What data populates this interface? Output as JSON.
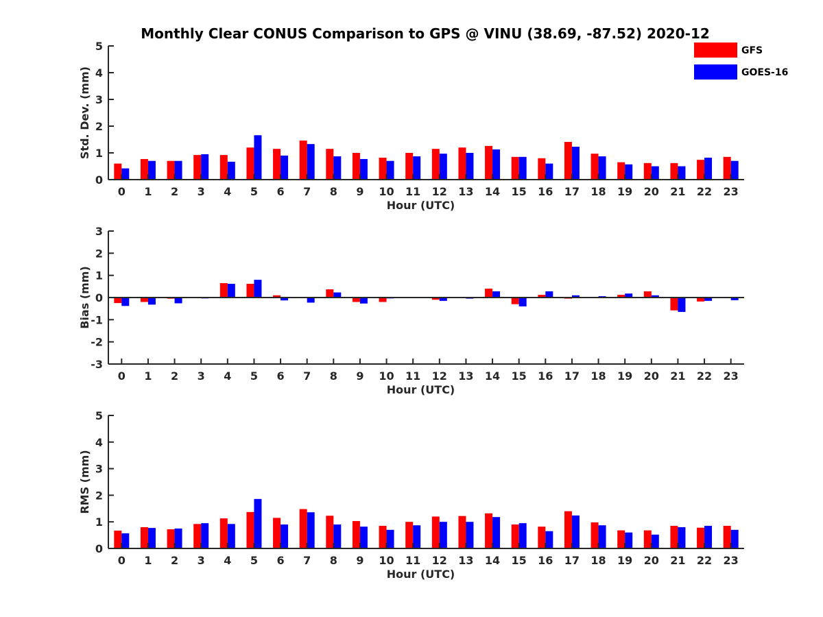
{
  "title": "Monthly Clear CONUS Comparison to GPS @ VINU (38.69, -87.52) 2020-12",
  "legend": {
    "placement": "top-right",
    "entries": [
      {
        "label": "GFS",
        "color": "#ff0000"
      },
      {
        "label": "GOES-16",
        "color": "#0000ff"
      }
    ]
  },
  "chart_data": [
    {
      "type": "bar",
      "xlabel": "Hour (UTC)",
      "ylabel": "Std. Dev. (mm)",
      "ylim": [
        0,
        5
      ],
      "yticks": [
        0,
        1,
        2,
        3,
        4,
        5
      ],
      "grid": false,
      "categories": [
        "0",
        "1",
        "2",
        "3",
        "4",
        "5",
        "6",
        "7",
        "8",
        "9",
        "10",
        "11",
        "12",
        "13",
        "14",
        "15",
        "16",
        "17",
        "18",
        "19",
        "20",
        "21",
        "22",
        "23"
      ],
      "series": [
        {
          "name": "GFS",
          "color": "#ff0000",
          "values": [
            0.6,
            0.77,
            0.7,
            0.92,
            0.92,
            1.2,
            1.15,
            1.46,
            1.15,
            1.0,
            0.82,
            1.0,
            1.15,
            1.2,
            1.26,
            0.85,
            0.8,
            1.41,
            0.97,
            0.65,
            0.62,
            0.62,
            0.74,
            0.85
          ]
        },
        {
          "name": "GOES-16",
          "color": "#0000ff",
          "values": [
            0.42,
            0.7,
            0.7,
            0.95,
            0.67,
            1.66,
            0.9,
            1.33,
            0.87,
            0.77,
            0.7,
            0.87,
            0.97,
            1.0,
            1.13,
            0.85,
            0.6,
            1.23,
            0.87,
            0.57,
            0.5,
            0.5,
            0.82,
            0.7
          ]
        }
      ]
    },
    {
      "type": "bar",
      "xlabel": "Hour (UTC)",
      "ylabel": "Bias (mm)",
      "ylim": [
        -3,
        3
      ],
      "yticks": [
        -3,
        -2,
        -1,
        0,
        1,
        2,
        3
      ],
      "grid": false,
      "categories": [
        "0",
        "1",
        "2",
        "3",
        "4",
        "5",
        "6",
        "7",
        "8",
        "9",
        "10",
        "11",
        "12",
        "13",
        "14",
        "15",
        "16",
        "17",
        "18",
        "19",
        "20",
        "21",
        "22",
        "23"
      ],
      "series": [
        {
          "name": "GFS",
          "color": "#ff0000",
          "values": [
            -0.25,
            -0.2,
            -0.05,
            0.0,
            0.65,
            0.62,
            0.1,
            0.03,
            0.37,
            -0.2,
            -0.2,
            0.0,
            -0.1,
            0.0,
            0.4,
            -0.3,
            0.12,
            -0.05,
            0.0,
            0.12,
            0.28,
            -0.58,
            -0.18,
            0.0
          ]
        },
        {
          "name": "GOES-16",
          "color": "#0000ff",
          "values": [
            -0.38,
            -0.32,
            -0.26,
            -0.04,
            0.62,
            0.8,
            -0.13,
            -0.23,
            0.23,
            -0.27,
            -0.04,
            0.0,
            -0.15,
            -0.05,
            0.28,
            -0.4,
            0.28,
            0.1,
            0.06,
            0.18,
            0.1,
            -0.65,
            -0.15,
            -0.12
          ]
        }
      ]
    },
    {
      "type": "bar",
      "xlabel": "Hour (UTC)",
      "ylabel": "RMS (mm)",
      "ylim": [
        0,
        5
      ],
      "yticks": [
        0,
        1,
        2,
        3,
        4,
        5
      ],
      "grid": false,
      "categories": [
        "0",
        "1",
        "2",
        "3",
        "4",
        "5",
        "6",
        "7",
        "8",
        "9",
        "10",
        "11",
        "12",
        "13",
        "14",
        "15",
        "16",
        "17",
        "18",
        "19",
        "20",
        "21",
        "22",
        "23"
      ],
      "series": [
        {
          "name": "GFS",
          "color": "#ff0000",
          "values": [
            0.67,
            0.8,
            0.72,
            0.92,
            1.13,
            1.37,
            1.15,
            1.48,
            1.23,
            1.03,
            0.85,
            1.0,
            1.2,
            1.22,
            1.32,
            0.9,
            0.82,
            1.4,
            0.98,
            0.68,
            0.68,
            0.85,
            0.78,
            0.85
          ]
        },
        {
          "name": "GOES-16",
          "color": "#0000ff",
          "values": [
            0.57,
            0.77,
            0.75,
            0.95,
            0.92,
            1.86,
            0.9,
            1.36,
            0.9,
            0.82,
            0.7,
            0.87,
            1.0,
            1.0,
            1.18,
            0.95,
            0.65,
            1.24,
            0.87,
            0.6,
            0.52,
            0.8,
            0.85,
            0.7
          ]
        }
      ]
    }
  ]
}
